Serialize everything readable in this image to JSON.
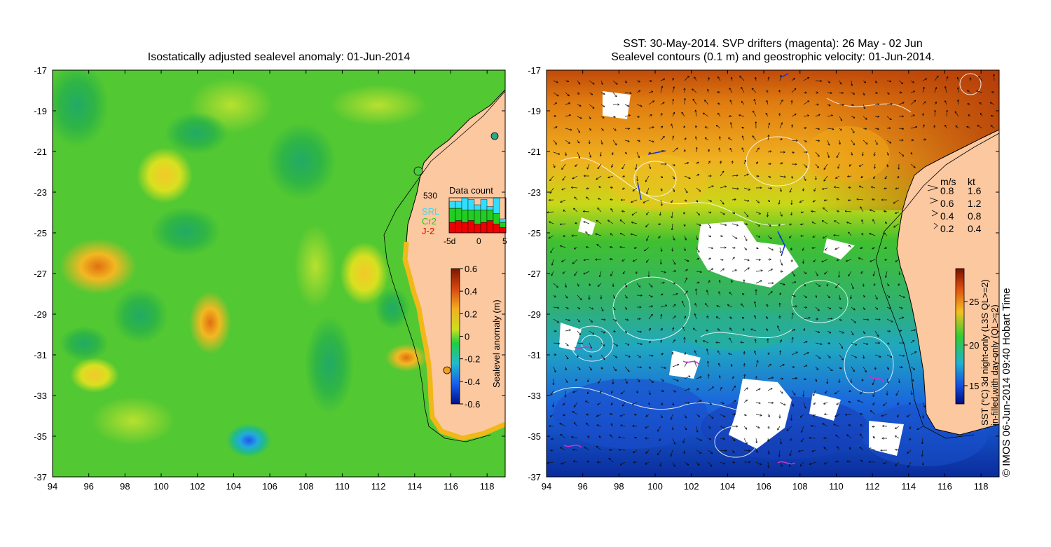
{
  "left_panel": {
    "title": "Isostatically adjusted sealevel anomaly: 01-Jun-2014",
    "x_ticks": [
      "94",
      "96",
      "98",
      "100",
      "102",
      "104",
      "106",
      "108",
      "110",
      "112",
      "114",
      "116",
      "118"
    ],
    "y_ticks": [
      "-17",
      "-19",
      "-21",
      "-23",
      "-25",
      "-27",
      "-29",
      "-31",
      "-33",
      "-35",
      "-37"
    ],
    "colorbar": {
      "label": "Sealevel anomaly (m)",
      "ticks": [
        "0.6",
        "0.4",
        "0.2",
        "0",
        "-0.2",
        "-0.4",
        "-0.6"
      ]
    },
    "data_count": {
      "title": "Data count",
      "max_label": "530",
      "legend": [
        "SRL",
        "Cr2",
        "J-2"
      ],
      "legend_colors": [
        "#33ddff",
        "#22cc22",
        "#ee0000"
      ],
      "x_ticks": [
        "-5d",
        "0",
        "5"
      ],
      "bars": [
        {
          "j2": 0.3,
          "cr2": 0.4,
          "srl": 0.2
        },
        {
          "j2": 0.35,
          "cr2": 0.35,
          "srl": 0.2
        },
        {
          "j2": 0.3,
          "cr2": 0.35,
          "srl": 0.35
        },
        {
          "j2": 0.35,
          "cr2": 0.3,
          "srl": 0.3
        },
        {
          "j2": 0.25,
          "cr2": 0.4,
          "srl": 0.15
        },
        {
          "j2": 0.3,
          "cr2": 0.35,
          "srl": 0.3
        },
        {
          "j2": 0.35,
          "cr2": 0.3,
          "srl": 0.1
        },
        {
          "j2": 0.25,
          "cr2": 0.3,
          "srl": 0.45
        },
        {
          "j2": 0.15,
          "cr2": 0.15,
          "srl": 0.1
        }
      ]
    }
  },
  "right_panel": {
    "title_line1": "SST: 30-May-2014. SVP drifters (magenta): 26 May - 02 Jun",
    "title_line2": "Sealevel contours (0.1 m) and geostrophic velocity: 01-Jun-2014.",
    "x_ticks": [
      "94",
      "96",
      "98",
      "100",
      "102",
      "104",
      "106",
      "108",
      "110",
      "112",
      "114",
      "116",
      "118"
    ],
    "y_ticks": [
      "-17",
      "-19",
      "-21",
      "-23",
      "-25",
      "-27",
      "-29",
      "-31",
      "-33",
      "-35",
      "-37"
    ],
    "velocity_legend": {
      "header_ms": "m/s",
      "header_kt": "kt",
      "rows": [
        {
          "ms": "0.8",
          "kt": "1.6"
        },
        {
          "ms": "0.6",
          "kt": "1.2"
        },
        {
          "ms": "0.4",
          "kt": "0.8"
        },
        {
          "ms": "0.2",
          "kt": "0.4"
        }
      ]
    },
    "colorbar": {
      "label_line1": "SST (°C) 3d night-only (L3S QL>=2)",
      "label_line2": "in-filled with day-only (QL>=2)",
      "ticks": [
        "25",
        "20",
        "15"
      ]
    }
  },
  "credit": "© IMOS 06-Jun-2014 09:40 Hobart Time",
  "colors": {
    "land": "#fcc8a0",
    "sla_green": "#44cc33",
    "sst_orange": "#e89010",
    "sst_green": "#33bb33",
    "sst_blue": "#1155cc"
  }
}
